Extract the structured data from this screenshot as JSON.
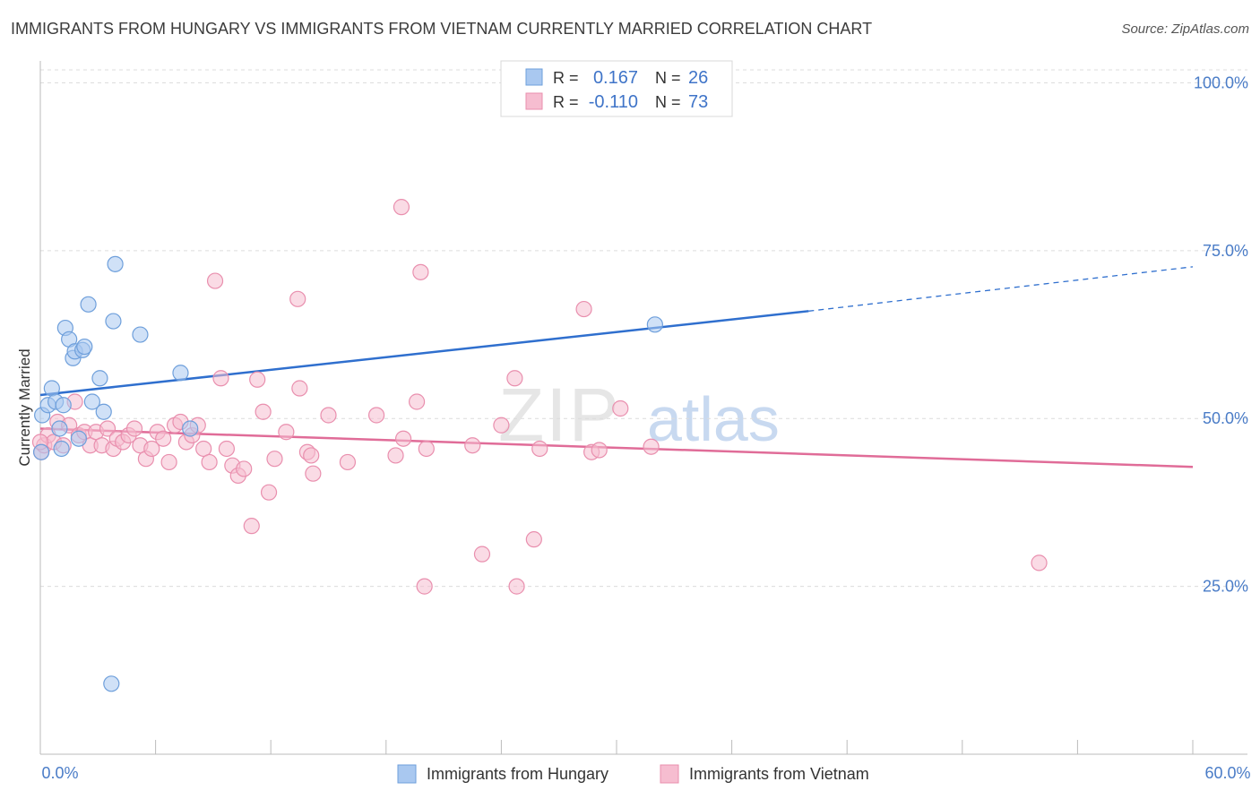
{
  "title": "IMMIGRANTS FROM HUNGARY VS IMMIGRANTS FROM VIETNAM CURRENTLY MARRIED CORRELATION CHART",
  "source": "Source: ZipAtlas.com",
  "watermark": {
    "zip": "ZIP",
    "atlas": "atlas"
  },
  "colors": {
    "hungary_fill": "#a9c8f0",
    "hungary_stroke": "#6e9fdb",
    "hungary_line": "#2f6fce",
    "vietnam_fill": "#f6bdd0",
    "vietnam_stroke": "#e98fae",
    "vietnam_line": "#e06c98",
    "axis_label": "#4a7cc7",
    "grid": "#dcdcdc"
  },
  "legend": {
    "rows": [
      {
        "r_label": "R =",
        "r_value": "0.167",
        "n_label": "N =",
        "n_value": "26"
      },
      {
        "r_label": "R =",
        "r_value": "-0.110",
        "n_label": "N =",
        "n_value": "73"
      }
    ]
  },
  "bottom_legend": {
    "items": [
      "Immigrants from Hungary",
      "Immigrants from Vietnam"
    ]
  },
  "chart_data": {
    "type": "scatter",
    "title": "IMMIGRANTS FROM HUNGARY VS IMMIGRANTS FROM VIETNAM CURRENTLY MARRIED CORRELATION CHART",
    "xlabel": "",
    "ylabel": "Currently Married",
    "xlim": [
      0,
      60
    ],
    "ylim": [
      0,
      105
    ],
    "x_tick_labels": [
      "0.0%",
      "60.0%"
    ],
    "y_ticks": [
      25,
      50,
      75,
      100
    ],
    "y_tick_labels": [
      "25.0%",
      "50.0%",
      "75.0%",
      "100.0%"
    ],
    "grid": true,
    "legend_placement": "top-center",
    "series": [
      {
        "name": "Immigrants from Hungary",
        "R": 0.167,
        "N": 26,
        "trend": {
          "x0": 0,
          "y0": 53.5,
          "x1": 40,
          "y1": 66.0,
          "dashed_to_x": 60,
          "dashed_to_y": 72.6
        },
        "points": [
          [
            0.1,
            50.5
          ],
          [
            0.4,
            52.0
          ],
          [
            0.6,
            54.5
          ],
          [
            0.8,
            52.5
          ],
          [
            1.0,
            48.5
          ],
          [
            1.1,
            45.5
          ],
          [
            1.2,
            52.0
          ],
          [
            1.3,
            63.5
          ],
          [
            1.5,
            61.8
          ],
          [
            1.7,
            59.0
          ],
          [
            1.8,
            60.0
          ],
          [
            2.0,
            47.0
          ],
          [
            2.2,
            60.2
          ],
          [
            2.3,
            60.7
          ],
          [
            2.5,
            67.0
          ],
          [
            2.7,
            52.5
          ],
          [
            3.1,
            56.0
          ],
          [
            3.3,
            51.0
          ],
          [
            3.7,
            10.5
          ],
          [
            3.8,
            64.5
          ],
          [
            3.9,
            73.0
          ],
          [
            5.2,
            62.5
          ],
          [
            7.3,
            56.8
          ],
          [
            7.8,
            48.5
          ],
          [
            32.0,
            64.0
          ],
          [
            0.05,
            45.0
          ]
        ]
      },
      {
        "name": "Immigrants from Vietnam",
        "R": -0.11,
        "N": 73,
        "trend": {
          "x0": 0,
          "y0": 48.5,
          "x1": 60,
          "y1": 42.8
        },
        "points": [
          [
            0.05,
            45.0
          ],
          [
            0.2,
            46.0
          ],
          [
            0.4,
            47.5
          ],
          [
            0.7,
            46.5
          ],
          [
            0.9,
            49.5
          ],
          [
            1.2,
            46.0
          ],
          [
            1.5,
            49.0
          ],
          [
            1.8,
            52.5
          ],
          [
            2.0,
            47.5
          ],
          [
            2.3,
            48.0
          ],
          [
            2.6,
            46.0
          ],
          [
            2.9,
            48.0
          ],
          [
            3.2,
            46.0
          ],
          [
            3.5,
            48.5
          ],
          [
            3.8,
            45.5
          ],
          [
            4.0,
            47.0
          ],
          [
            4.3,
            46.5
          ],
          [
            4.6,
            47.5
          ],
          [
            4.9,
            48.5
          ],
          [
            5.2,
            46.0
          ],
          [
            5.5,
            44.0
          ],
          [
            5.8,
            45.5
          ],
          [
            6.1,
            48.0
          ],
          [
            6.4,
            47.0
          ],
          [
            6.7,
            43.5
          ],
          [
            7.0,
            49.0
          ],
          [
            7.3,
            49.5
          ],
          [
            7.6,
            46.5
          ],
          [
            7.9,
            47.5
          ],
          [
            8.2,
            49.0
          ],
          [
            8.5,
            45.5
          ],
          [
            8.8,
            43.5
          ],
          [
            9.1,
            70.5
          ],
          [
            9.4,
            56.0
          ],
          [
            9.7,
            45.5
          ],
          [
            10.0,
            43.0
          ],
          [
            10.3,
            41.5
          ],
          [
            10.6,
            42.5
          ],
          [
            11.0,
            34.0
          ],
          [
            11.3,
            55.8
          ],
          [
            11.6,
            51.0
          ],
          [
            11.9,
            39.0
          ],
          [
            12.2,
            44.0
          ],
          [
            12.8,
            48.0
          ],
          [
            13.4,
            67.8
          ],
          [
            13.5,
            54.5
          ],
          [
            13.9,
            45.0
          ],
          [
            14.1,
            44.5
          ],
          [
            14.2,
            41.8
          ],
          [
            15.0,
            50.5
          ],
          [
            16.0,
            43.5
          ],
          [
            17.5,
            50.5
          ],
          [
            18.5,
            44.5
          ],
          [
            18.8,
            81.5
          ],
          [
            18.9,
            47.0
          ],
          [
            19.6,
            52.5
          ],
          [
            19.8,
            71.8
          ],
          [
            20.0,
            25.0
          ],
          [
            20.1,
            45.5
          ],
          [
            22.5,
            46.0
          ],
          [
            23.0,
            29.8
          ],
          [
            24.0,
            49.0
          ],
          [
            24.7,
            56.0
          ],
          [
            24.8,
            25.0
          ],
          [
            25.7,
            32.0
          ],
          [
            26.0,
            45.5
          ],
          [
            28.3,
            66.3
          ],
          [
            28.7,
            45.0
          ],
          [
            29.1,
            45.3
          ],
          [
            30.2,
            51.5
          ],
          [
            31.8,
            45.8
          ],
          [
            52.0,
            28.5
          ],
          [
            0.0,
            46.5
          ]
        ]
      }
    ]
  }
}
